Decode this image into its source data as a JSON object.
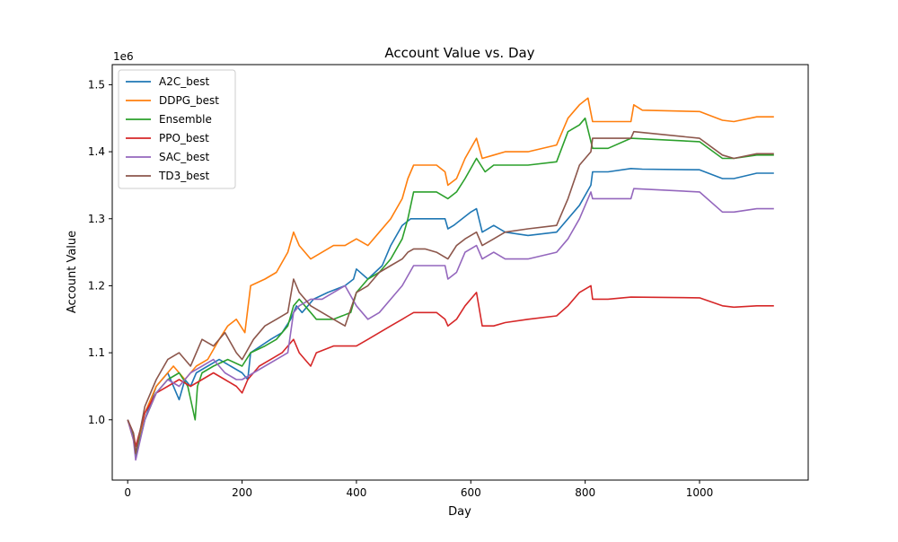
{
  "chart_data": {
    "type": "line",
    "title": "Account Value vs. Day",
    "xlabel": "Day",
    "ylabel": "Account Value",
    "y_offset_label": "1e6",
    "xlim": [
      -27,
      1190
    ],
    "ylim": [
      0.91,
      1.53
    ],
    "x_ticks": [
      0,
      200,
      400,
      600,
      800,
      1000
    ],
    "x_tick_labels": [
      "0",
      "200",
      "400",
      "600",
      "800",
      "1000"
    ],
    "y_ticks": [
      1.0,
      1.1,
      1.2,
      1.3,
      1.4,
      1.5
    ],
    "y_tick_labels": [
      "1.0",
      "1.1",
      "1.2",
      "1.3",
      "1.4",
      "1.5"
    ],
    "grid": false,
    "legend_position": "top-left",
    "series": [
      {
        "name": "A2C_best",
        "color": "#1f77b4",
        "x": [
          0,
          10,
          14,
          30,
          50,
          70,
          90,
          100,
          110,
          120,
          140,
          160,
          180,
          200,
          210,
          215,
          250,
          270,
          285,
          295,
          305,
          325,
          350,
          380,
          395,
          400,
          420,
          445,
          460,
          480,
          495,
          500,
          520,
          540,
          555,
          560,
          570,
          600,
          610,
          620,
          640,
          660,
          700,
          750,
          770,
          790,
          810,
          813,
          840,
          880,
          900,
          1000,
          1040,
          1060,
          1100,
          1130
        ],
        "y": [
          1.0,
          0.975,
          0.945,
          1.0,
          1.05,
          1.07,
          1.03,
          1.06,
          1.05,
          1.07,
          1.08,
          1.09,
          1.08,
          1.07,
          1.06,
          1.1,
          1.12,
          1.13,
          1.15,
          1.17,
          1.16,
          1.18,
          1.19,
          1.2,
          1.21,
          1.225,
          1.21,
          1.23,
          1.26,
          1.29,
          1.3,
          1.3,
          1.3,
          1.3,
          1.3,
          1.285,
          1.29,
          1.31,
          1.315,
          1.28,
          1.29,
          1.28,
          1.275,
          1.28,
          1.3,
          1.32,
          1.35,
          1.37,
          1.37,
          1.375,
          1.374,
          1.373,
          1.36,
          1.36,
          1.368,
          1.368
        ]
      },
      {
        "name": "DDPG_best",
        "color": "#ff7f0e",
        "x": [
          0,
          10,
          14,
          30,
          50,
          80,
          100,
          120,
          140,
          160,
          175,
          190,
          205,
          215,
          240,
          260,
          280,
          290,
          300,
          320,
          340,
          360,
          380,
          400,
          420,
          440,
          460,
          480,
          490,
          500,
          520,
          540,
          555,
          560,
          575,
          590,
          610,
          620,
          640,
          660,
          700,
          750,
          770,
          790,
          805,
          813,
          820,
          840,
          880,
          885,
          900,
          1000,
          1040,
          1060,
          1100,
          1130
        ],
        "y": [
          1.0,
          0.97,
          0.95,
          1.01,
          1.05,
          1.08,
          1.06,
          1.08,
          1.09,
          1.12,
          1.14,
          1.15,
          1.13,
          1.2,
          1.21,
          1.22,
          1.25,
          1.28,
          1.26,
          1.24,
          1.25,
          1.26,
          1.26,
          1.27,
          1.26,
          1.28,
          1.3,
          1.33,
          1.36,
          1.38,
          1.38,
          1.38,
          1.37,
          1.35,
          1.36,
          1.39,
          1.42,
          1.39,
          1.395,
          1.4,
          1.4,
          1.41,
          1.45,
          1.47,
          1.48,
          1.445,
          1.445,
          1.445,
          1.445,
          1.47,
          1.462,
          1.46,
          1.447,
          1.445,
          1.452,
          1.452
        ]
      },
      {
        "name": "Ensemble",
        "color": "#2ca02c",
        "x": [
          0,
          10,
          14,
          30,
          50,
          70,
          90,
          105,
          118,
          122,
          130,
          150,
          175,
          200,
          215,
          240,
          260,
          280,
          290,
          300,
          320,
          330,
          360,
          390,
          400,
          420,
          440,
          460,
          480,
          490,
          500,
          520,
          540,
          560,
          575,
          590,
          610,
          625,
          640,
          660,
          700,
          750,
          770,
          790,
          800,
          813,
          840,
          880,
          1000,
          1040,
          1060,
          1100,
          1130
        ],
        "y": [
          1.0,
          0.975,
          0.945,
          1.0,
          1.04,
          1.06,
          1.07,
          1.05,
          1.0,
          1.05,
          1.07,
          1.08,
          1.09,
          1.08,
          1.1,
          1.11,
          1.12,
          1.14,
          1.17,
          1.18,
          1.16,
          1.15,
          1.15,
          1.16,
          1.19,
          1.21,
          1.22,
          1.24,
          1.27,
          1.3,
          1.34,
          1.34,
          1.34,
          1.33,
          1.34,
          1.36,
          1.39,
          1.37,
          1.38,
          1.38,
          1.38,
          1.385,
          1.43,
          1.44,
          1.45,
          1.405,
          1.405,
          1.42,
          1.415,
          1.39,
          1.39,
          1.395,
          1.395
        ]
      },
      {
        "name": "PPO_best",
        "color": "#d62728",
        "x": [
          0,
          10,
          14,
          30,
          50,
          70,
          90,
          110,
          130,
          150,
          170,
          190,
          200,
          210,
          230,
          250,
          270,
          290,
          300,
          310,
          320,
          330,
          360,
          400,
          420,
          440,
          460,
          480,
          490,
          500,
          520,
          540,
          555,
          560,
          575,
          590,
          610,
          620,
          640,
          660,
          700,
          750,
          770,
          790,
          810,
          813,
          840,
          880,
          1000,
          1040,
          1060,
          1100,
          1130
        ],
        "y": [
          1.0,
          0.98,
          0.96,
          1.01,
          1.04,
          1.05,
          1.06,
          1.05,
          1.06,
          1.07,
          1.06,
          1.05,
          1.04,
          1.06,
          1.08,
          1.09,
          1.1,
          1.12,
          1.1,
          1.09,
          1.08,
          1.1,
          1.11,
          1.11,
          1.12,
          1.13,
          1.14,
          1.15,
          1.155,
          1.16,
          1.16,
          1.16,
          1.15,
          1.14,
          1.15,
          1.17,
          1.19,
          1.14,
          1.14,
          1.145,
          1.15,
          1.155,
          1.17,
          1.19,
          1.2,
          1.18,
          1.18,
          1.183,
          1.182,
          1.17,
          1.168,
          1.17,
          1.17
        ]
      },
      {
        "name": "SAC_best",
        "color": "#9467bd",
        "x": [
          0,
          10,
          14,
          30,
          50,
          70,
          90,
          110,
          130,
          150,
          170,
          190,
          200,
          220,
          240,
          260,
          280,
          290,
          300,
          320,
          340,
          360,
          380,
          400,
          420,
          440,
          460,
          480,
          500,
          520,
          540,
          550,
          555,
          560,
          575,
          590,
          610,
          620,
          640,
          660,
          700,
          750,
          770,
          790,
          810,
          813,
          840,
          880,
          885,
          1000,
          1040,
          1060,
          1100,
          1130
        ],
        "y": [
          1.0,
          0.97,
          0.94,
          1.0,
          1.04,
          1.06,
          1.05,
          1.07,
          1.08,
          1.09,
          1.07,
          1.06,
          1.06,
          1.07,
          1.08,
          1.09,
          1.1,
          1.16,
          1.17,
          1.18,
          1.18,
          1.19,
          1.2,
          1.17,
          1.15,
          1.16,
          1.18,
          1.2,
          1.23,
          1.23,
          1.23,
          1.23,
          1.23,
          1.21,
          1.22,
          1.25,
          1.26,
          1.24,
          1.25,
          1.24,
          1.24,
          1.25,
          1.27,
          1.3,
          1.34,
          1.33,
          1.33,
          1.33,
          1.345,
          1.34,
          1.31,
          1.31,
          1.315,
          1.315
        ]
      },
      {
        "name": "TD3_best",
        "color": "#8c564b",
        "x": [
          0,
          10,
          14,
          30,
          50,
          70,
          90,
          110,
          130,
          150,
          170,
          190,
          200,
          220,
          240,
          260,
          280,
          290,
          300,
          320,
          340,
          360,
          380,
          400,
          420,
          440,
          460,
          480,
          490,
          500,
          520,
          540,
          560,
          575,
          590,
          610,
          620,
          640,
          660,
          700,
          750,
          770,
          790,
          810,
          813,
          840,
          880,
          885,
          1000,
          1040,
          1060,
          1100,
          1130
        ],
        "y": [
          1.0,
          0.98,
          0.95,
          1.02,
          1.06,
          1.09,
          1.1,
          1.08,
          1.12,
          1.11,
          1.13,
          1.1,
          1.09,
          1.12,
          1.14,
          1.15,
          1.16,
          1.21,
          1.19,
          1.17,
          1.16,
          1.15,
          1.14,
          1.19,
          1.2,
          1.22,
          1.23,
          1.24,
          1.25,
          1.255,
          1.255,
          1.25,
          1.24,
          1.26,
          1.27,
          1.28,
          1.26,
          1.27,
          1.28,
          1.285,
          1.29,
          1.33,
          1.38,
          1.4,
          1.42,
          1.42,
          1.42,
          1.43,
          1.42,
          1.395,
          1.39,
          1.397,
          1.397
        ]
      }
    ]
  }
}
